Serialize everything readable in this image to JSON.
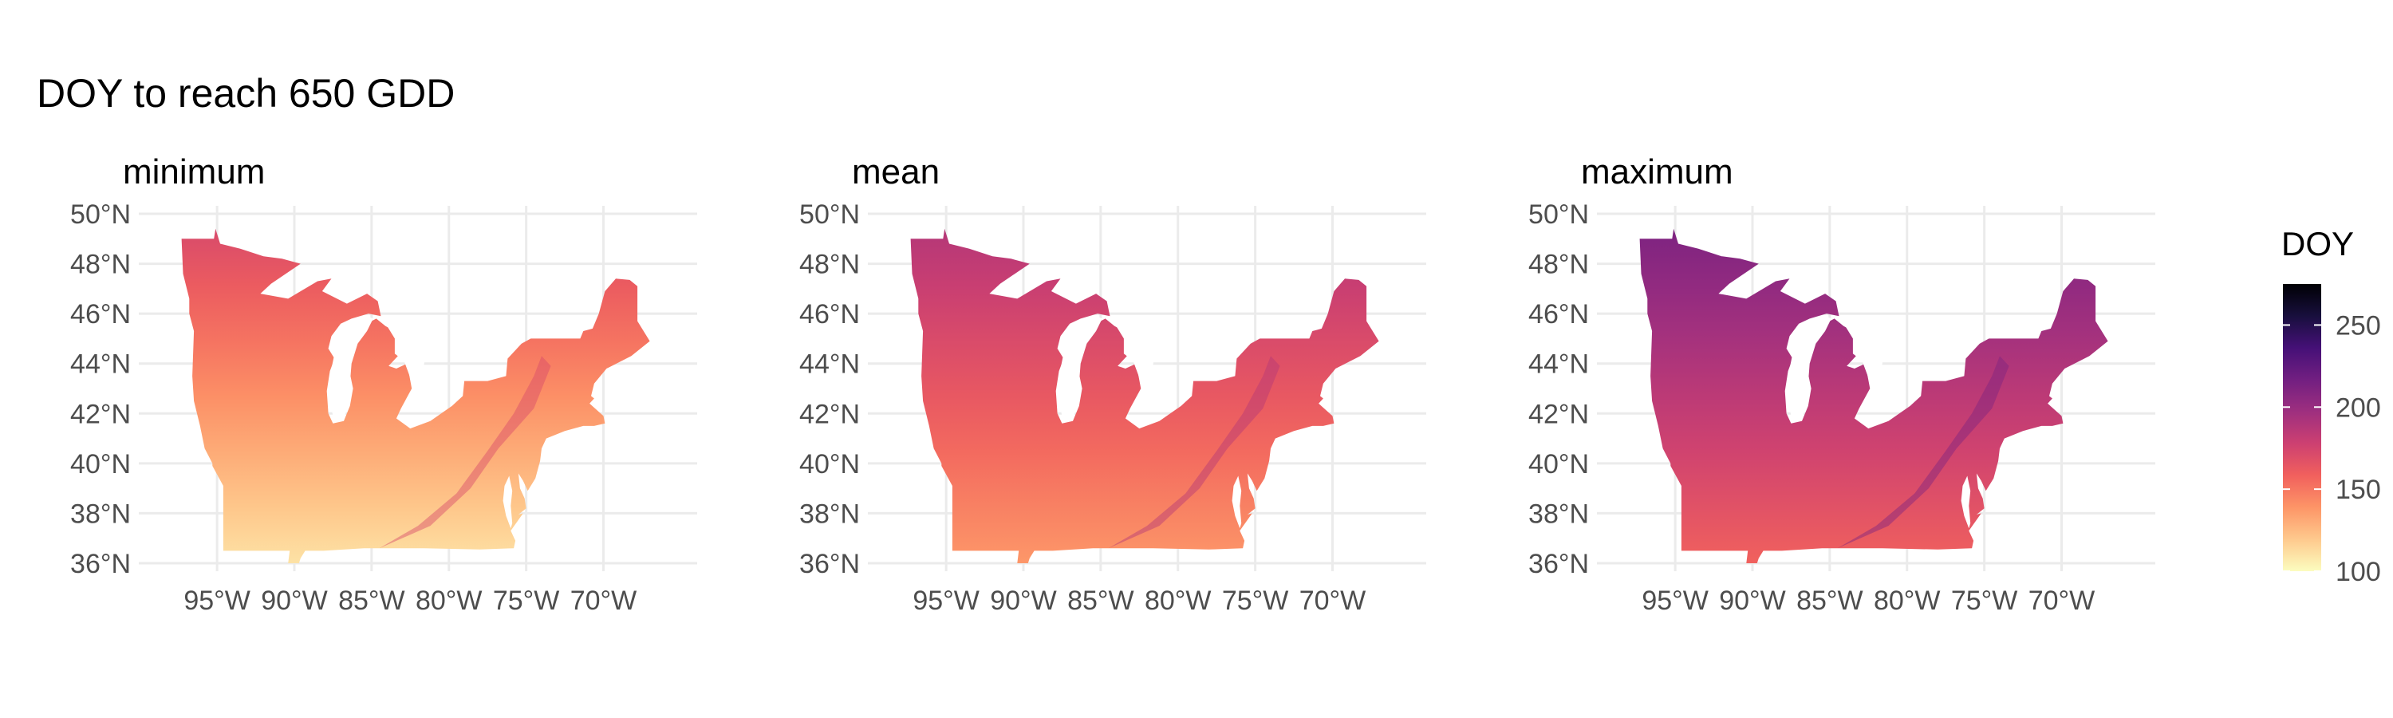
{
  "chart_data": {
    "type": "heatmap",
    "title": "DOY to reach 650 GDD",
    "xlabel": "",
    "ylabel": "",
    "xlim": [
      -98,
      -66
    ],
    "ylim": [
      36,
      50
    ],
    "grid": true,
    "x_ticks": [
      -95,
      -90,
      -85,
      -80,
      -75,
      -70
    ],
    "y_ticks": [
      36,
      38,
      40,
      42,
      44,
      46,
      48,
      50
    ],
    "x_tick_labels": [
      "95°W",
      "90°W",
      "85°W",
      "80°W",
      "75°W",
      "70°W"
    ],
    "y_tick_labels": [
      "36°N",
      "38°N",
      "40°N",
      "42°N",
      "44°N",
      "46°N",
      "48°N",
      "50°N"
    ],
    "panels": [
      {
        "name": "minimum",
        "doy_south": 110,
        "doy_north": 172,
        "doy_range": [
          105,
          180
        ]
      },
      {
        "name": "mean",
        "doy_south": 138,
        "doy_north": 188,
        "doy_range": [
          130,
          195
        ]
      },
      {
        "name": "maximum",
        "doy_south": 158,
        "doy_north": 212,
        "doy_range": [
          150,
          220
        ]
      }
    ],
    "legend": {
      "title": "DOY",
      "position": "right",
      "range": [
        100,
        275
      ],
      "ticks": [
        100,
        150,
        200,
        250
      ],
      "tick_labels": [
        "100",
        "150",
        "200",
        "250"
      ],
      "palette": [
        "#FCFDBF",
        "#FEC98D",
        "#FD9567",
        "#F1605D",
        "#CD4071",
        "#9E2F7F",
        "#721F81",
        "#451077",
        "#180F3D",
        "#000004"
      ]
    }
  }
}
